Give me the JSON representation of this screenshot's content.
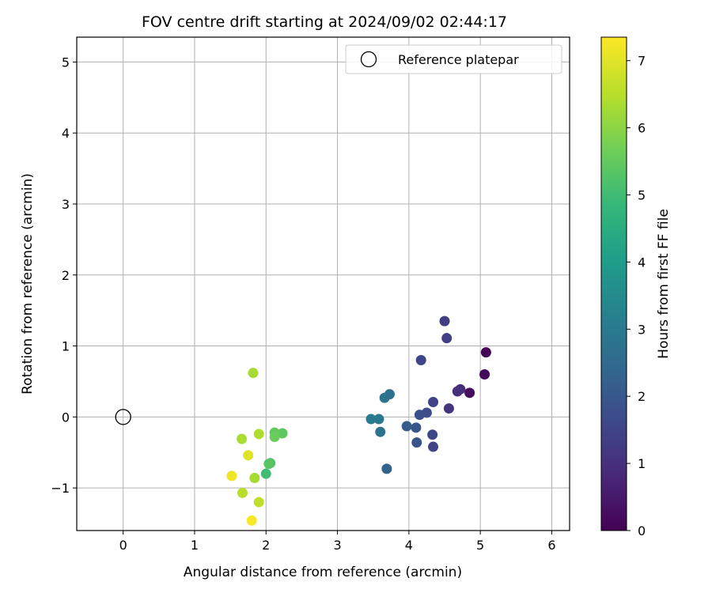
{
  "chart_data": {
    "type": "scatter",
    "title": "FOV centre drift starting at 2024/09/02 02:44:17",
    "xlabel": "Angular distance from reference (arcmin)",
    "ylabel": "Rotation from reference (arcmin)",
    "xlim": [
      -0.65,
      6.25
    ],
    "ylim": [
      -1.6,
      5.35
    ],
    "xticks": [
      "0",
      "1",
      "2",
      "3",
      "4",
      "5",
      "6"
    ],
    "yticks": [
      "−1",
      "0",
      "1",
      "2",
      "3",
      "4",
      "5"
    ],
    "grid": true,
    "legend": {
      "position": "top-right",
      "entries": [
        "Reference platepar"
      ]
    },
    "reference_point": {
      "label": "Reference platepar",
      "x": 0,
      "y": 0
    },
    "colorbar": {
      "label": "Hours from first FF file",
      "colormap": "viridis",
      "range": [
        0,
        7.35
      ],
      "ticks": [
        "0",
        "1",
        "2",
        "3",
        "4",
        "5",
        "6",
        "7"
      ]
    },
    "series": [
      {
        "points": [
          {
            "x": 5.08,
            "y": 0.91,
            "t": 0.05
          },
          {
            "x": 5.06,
            "y": 0.6,
            "t": 0.15
          },
          {
            "x": 4.85,
            "y": 0.34,
            "t": 0.25
          },
          {
            "x": 4.72,
            "y": 0.39,
            "t": 0.9
          },
          {
            "x": 4.68,
            "y": 0.36,
            "t": 1.0
          },
          {
            "x": 4.56,
            "y": 0.12,
            "t": 1.1
          },
          {
            "x": 4.5,
            "y": 1.35,
            "t": 1.3
          },
          {
            "x": 4.53,
            "y": 1.11,
            "t": 1.35
          },
          {
            "x": 4.34,
            "y": 0.21,
            "t": 1.45
          },
          {
            "x": 4.34,
            "y": -0.42,
            "t": 1.5
          },
          {
            "x": 4.33,
            "y": -0.25,
            "t": 1.6
          },
          {
            "x": 4.17,
            "y": 0.8,
            "t": 1.55
          },
          {
            "x": 4.25,
            "y": 0.06,
            "t": 1.7
          },
          {
            "x": 4.15,
            "y": 0.03,
            "t": 1.8
          },
          {
            "x": 4.11,
            "y": -0.36,
            "t": 1.85
          },
          {
            "x": 4.1,
            "y": -0.15,
            "t": 1.9
          },
          {
            "x": 3.97,
            "y": -0.13,
            "t": 2.15
          },
          {
            "x": 3.69,
            "y": -0.73,
            "t": 2.3
          },
          {
            "x": 3.73,
            "y": 0.32,
            "t": 2.7
          },
          {
            "x": 3.66,
            "y": 0.27,
            "t": 2.8
          },
          {
            "x": 3.6,
            "y": -0.21,
            "t": 2.75
          },
          {
            "x": 3.58,
            "y": -0.03,
            "t": 2.9
          },
          {
            "x": 3.47,
            "y": -0.03,
            "t": 3.0
          },
          {
            "x": 2.23,
            "y": -0.23,
            "t": 5.4
          },
          {
            "x": 2.12,
            "y": -0.22,
            "t": 5.5
          },
          {
            "x": 2.12,
            "y": -0.28,
            "t": 5.6
          },
          {
            "x": 2.06,
            "y": -0.65,
            "t": 5.2
          },
          {
            "x": 2.04,
            "y": -0.66,
            "t": 5.35
          },
          {
            "x": 2.0,
            "y": -0.8,
            "t": 5.0
          },
          {
            "x": 1.9,
            "y": -0.24,
            "t": 6.4
          },
          {
            "x": 1.84,
            "y": -0.86,
            "t": 6.3
          },
          {
            "x": 1.82,
            "y": 0.62,
            "t": 6.3
          },
          {
            "x": 1.66,
            "y": -0.31,
            "t": 6.35
          },
          {
            "x": 1.67,
            "y": -1.07,
            "t": 6.5
          },
          {
            "x": 1.9,
            "y": -1.2,
            "t": 6.6
          },
          {
            "x": 1.75,
            "y": -0.54,
            "t": 7.0
          },
          {
            "x": 1.52,
            "y": -0.83,
            "t": 7.15
          },
          {
            "x": 1.8,
            "y": -1.46,
            "t": 7.3
          }
        ]
      }
    ]
  }
}
